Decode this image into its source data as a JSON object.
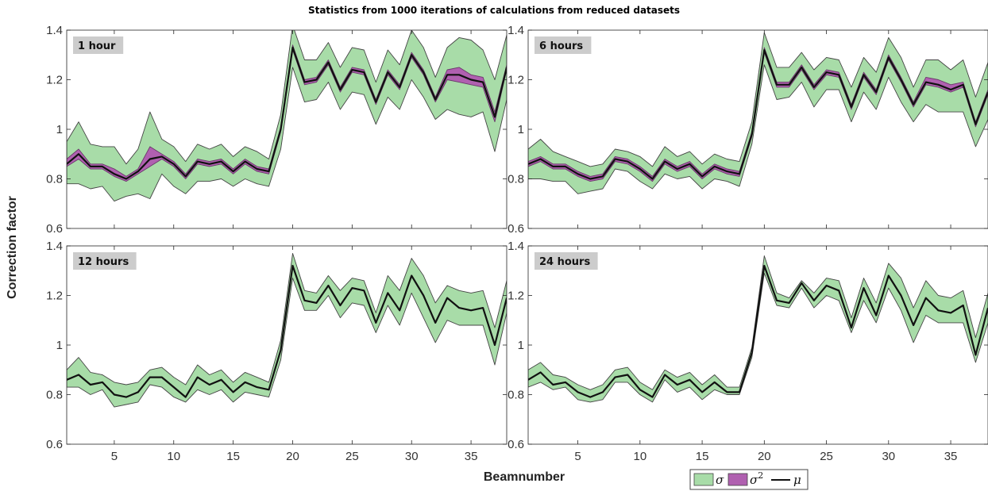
{
  "chart_data": {
    "type": "area",
    "title": "Statistics from 1000 iterations of calculations from reduced datasets",
    "xlabel": "Beamnumber",
    "ylabel": "Correction factor",
    "xlim": [
      1,
      38
    ],
    "ylim": [
      0.6,
      1.4
    ],
    "xticks": [
      "5",
      "10",
      "15",
      "20",
      "25",
      "30",
      "35"
    ],
    "yticks": [
      "0.6",
      "0.8",
      "1",
      "1.2",
      "1.4"
    ],
    "legend": {
      "placement": "bottom-right",
      "entries": [
        "σ",
        "σ²",
        "μ"
      ],
      "sigma2_superscript": "2"
    },
    "colors": {
      "sigma_fill": "#a8dca8",
      "sigma_edge": "#444444",
      "sigma2_fill": "#b060b0",
      "mu_line": "#111111",
      "label_bg": "#cccccc"
    },
    "panels": [
      {
        "label": "1 hour",
        "x": [
          1,
          2,
          3,
          4,
          5,
          6,
          7,
          8,
          9,
          10,
          11,
          12,
          13,
          14,
          15,
          16,
          17,
          18,
          19,
          20,
          21,
          22,
          23,
          24,
          25,
          26,
          27,
          28,
          29,
          30,
          31,
          32,
          33,
          34,
          35,
          36,
          37,
          38
        ],
        "mu": [
          0.86,
          0.9,
          0.85,
          0.85,
          0.82,
          0.8,
          0.83,
          0.88,
          0.89,
          0.86,
          0.81,
          0.87,
          0.86,
          0.87,
          0.83,
          0.87,
          0.84,
          0.83,
          1.0,
          1.33,
          1.19,
          1.2,
          1.27,
          1.16,
          1.24,
          1.23,
          1.11,
          1.23,
          1.17,
          1.3,
          1.23,
          1.12,
          1.22,
          1.22,
          1.2,
          1.19,
          1.05,
          1.25
        ],
        "sigma_upper": [
          0.95,
          1.03,
          0.94,
          0.93,
          0.93,
          0.86,
          0.92,
          1.07,
          0.96,
          0.93,
          0.87,
          0.94,
          0.92,
          0.94,
          0.89,
          0.93,
          0.91,
          0.88,
          1.06,
          1.42,
          1.28,
          1.28,
          1.35,
          1.25,
          1.33,
          1.32,
          1.19,
          1.32,
          1.26,
          1.4,
          1.33,
          1.21,
          1.33,
          1.37,
          1.36,
          1.32,
          1.2,
          1.38
        ],
        "sigma_lower": [
          0.78,
          0.78,
          0.76,
          0.77,
          0.71,
          0.73,
          0.74,
          0.72,
          0.82,
          0.77,
          0.74,
          0.79,
          0.79,
          0.8,
          0.77,
          0.8,
          0.78,
          0.77,
          0.92,
          1.25,
          1.11,
          1.12,
          1.19,
          1.08,
          1.15,
          1.14,
          1.02,
          1.13,
          1.08,
          1.2,
          1.13,
          1.04,
          1.08,
          1.06,
          1.05,
          1.07,
          0.91,
          1.12
        ],
        "sigma2_upper": [
          0.88,
          0.92,
          0.86,
          0.86,
          0.84,
          0.81,
          0.84,
          0.93,
          0.9,
          0.87,
          0.82,
          0.88,
          0.87,
          0.88,
          0.84,
          0.88,
          0.85,
          0.84,
          1.01,
          1.34,
          1.2,
          1.21,
          1.28,
          1.17,
          1.25,
          1.24,
          1.12,
          1.24,
          1.18,
          1.31,
          1.24,
          1.13,
          1.24,
          1.25,
          1.22,
          1.21,
          1.07,
          1.26
        ],
        "sigma2_lower": [
          0.85,
          0.88,
          0.84,
          0.84,
          0.81,
          0.79,
          0.82,
          0.85,
          0.88,
          0.85,
          0.8,
          0.86,
          0.85,
          0.86,
          0.82,
          0.86,
          0.83,
          0.82,
          0.99,
          1.32,
          1.18,
          1.19,
          1.26,
          1.15,
          1.23,
          1.22,
          1.1,
          1.22,
          1.16,
          1.29,
          1.22,
          1.11,
          1.2,
          1.19,
          1.18,
          1.17,
          1.03,
          1.24
        ]
      },
      {
        "label": "6 hours",
        "x": [
          1,
          2,
          3,
          4,
          5,
          6,
          7,
          8,
          9,
          10,
          11,
          12,
          13,
          14,
          15,
          16,
          17,
          18,
          19,
          20,
          21,
          22,
          23,
          24,
          25,
          26,
          27,
          28,
          29,
          30,
          31,
          32,
          33,
          34,
          35,
          36,
          37,
          38
        ],
        "mu": [
          0.86,
          0.88,
          0.85,
          0.85,
          0.82,
          0.8,
          0.81,
          0.88,
          0.87,
          0.84,
          0.8,
          0.87,
          0.84,
          0.86,
          0.81,
          0.85,
          0.83,
          0.82,
          0.98,
          1.32,
          1.18,
          1.18,
          1.25,
          1.17,
          1.23,
          1.22,
          1.09,
          1.22,
          1.15,
          1.29,
          1.2,
          1.1,
          1.19,
          1.18,
          1.16,
          1.18,
          1.02,
          1.15
        ],
        "sigma_upper": [
          0.92,
          0.96,
          0.91,
          0.89,
          0.87,
          0.85,
          0.86,
          0.92,
          0.91,
          0.89,
          0.85,
          0.93,
          0.89,
          0.91,
          0.86,
          0.9,
          0.88,
          0.87,
          1.03,
          1.39,
          1.25,
          1.25,
          1.31,
          1.24,
          1.29,
          1.28,
          1.17,
          1.29,
          1.23,
          1.37,
          1.29,
          1.17,
          1.28,
          1.28,
          1.24,
          1.28,
          1.13,
          1.27
        ],
        "sigma_lower": [
          0.8,
          0.8,
          0.79,
          0.79,
          0.74,
          0.75,
          0.76,
          0.84,
          0.83,
          0.79,
          0.76,
          0.82,
          0.8,
          0.81,
          0.76,
          0.8,
          0.79,
          0.77,
          0.94,
          1.26,
          1.12,
          1.13,
          1.19,
          1.09,
          1.16,
          1.16,
          1.03,
          1.15,
          1.08,
          1.21,
          1.11,
          1.03,
          1.1,
          1.07,
          1.07,
          1.07,
          0.93,
          1.04
        ],
        "sigma2_upper": [
          0.87,
          0.89,
          0.86,
          0.86,
          0.83,
          0.81,
          0.82,
          0.89,
          0.88,
          0.85,
          0.81,
          0.88,
          0.85,
          0.87,
          0.82,
          0.86,
          0.84,
          0.83,
          0.99,
          1.33,
          1.19,
          1.19,
          1.26,
          1.18,
          1.24,
          1.23,
          1.1,
          1.23,
          1.16,
          1.3,
          1.21,
          1.11,
          1.21,
          1.2,
          1.18,
          1.19,
          1.03,
          1.16
        ],
        "sigma2_lower": [
          0.85,
          0.87,
          0.84,
          0.84,
          0.81,
          0.79,
          0.8,
          0.87,
          0.86,
          0.83,
          0.79,
          0.86,
          0.83,
          0.85,
          0.8,
          0.84,
          0.82,
          0.81,
          0.97,
          1.31,
          1.17,
          1.17,
          1.24,
          1.16,
          1.22,
          1.21,
          1.08,
          1.21,
          1.14,
          1.28,
          1.19,
          1.09,
          1.18,
          1.17,
          1.15,
          1.17,
          1.01,
          1.14
        ]
      },
      {
        "label": "12 hours",
        "x": [
          1,
          2,
          3,
          4,
          5,
          6,
          7,
          8,
          9,
          10,
          11,
          12,
          13,
          14,
          15,
          16,
          17,
          18,
          19,
          20,
          21,
          22,
          23,
          24,
          25,
          26,
          27,
          28,
          29,
          30,
          31,
          32,
          33,
          34,
          35,
          36,
          37,
          38
        ],
        "mu": [
          0.86,
          0.88,
          0.84,
          0.85,
          0.8,
          0.79,
          0.81,
          0.87,
          0.87,
          0.83,
          0.79,
          0.87,
          0.84,
          0.86,
          0.81,
          0.85,
          0.83,
          0.82,
          0.98,
          1.32,
          1.18,
          1.17,
          1.24,
          1.16,
          1.23,
          1.22,
          1.09,
          1.21,
          1.14,
          1.28,
          1.2,
          1.09,
          1.19,
          1.15,
          1.14,
          1.15,
          1.0,
          1.19
        ],
        "sigma_upper": [
          0.9,
          0.95,
          0.89,
          0.88,
          0.85,
          0.84,
          0.85,
          0.9,
          0.91,
          0.87,
          0.84,
          0.92,
          0.88,
          0.9,
          0.85,
          0.89,
          0.87,
          0.85,
          1.02,
          1.37,
          1.22,
          1.21,
          1.28,
          1.22,
          1.27,
          1.26,
          1.13,
          1.28,
          1.22,
          1.35,
          1.28,
          1.17,
          1.24,
          1.22,
          1.21,
          1.22,
          1.07,
          1.26
        ],
        "sigma_lower": [
          0.83,
          0.83,
          0.8,
          0.82,
          0.75,
          0.76,
          0.77,
          0.84,
          0.83,
          0.79,
          0.77,
          0.82,
          0.8,
          0.82,
          0.77,
          0.81,
          0.8,
          0.79,
          0.94,
          1.27,
          1.14,
          1.14,
          1.2,
          1.11,
          1.17,
          1.16,
          1.05,
          1.16,
          1.08,
          1.21,
          1.11,
          1.01,
          1.1,
          1.08,
          1.08,
          1.08,
          0.92,
          1.13
        ],
        "sigma2_upper": [
          0.86,
          0.88,
          0.84,
          0.85,
          0.8,
          0.79,
          0.81,
          0.87,
          0.87,
          0.83,
          0.79,
          0.87,
          0.84,
          0.86,
          0.81,
          0.85,
          0.83,
          0.82,
          0.98,
          1.32,
          1.18,
          1.17,
          1.24,
          1.16,
          1.23,
          1.22,
          1.09,
          1.21,
          1.14,
          1.28,
          1.2,
          1.09,
          1.19,
          1.15,
          1.14,
          1.15,
          1.0,
          1.19
        ],
        "sigma2_lower": [
          0.86,
          0.88,
          0.84,
          0.85,
          0.8,
          0.79,
          0.81,
          0.87,
          0.87,
          0.83,
          0.79,
          0.87,
          0.84,
          0.86,
          0.81,
          0.85,
          0.83,
          0.82,
          0.98,
          1.32,
          1.18,
          1.17,
          1.24,
          1.16,
          1.23,
          1.22,
          1.09,
          1.21,
          1.14,
          1.28,
          1.2,
          1.09,
          1.19,
          1.15,
          1.14,
          1.15,
          1.0,
          1.19
        ]
      },
      {
        "label": "24 hours",
        "x": [
          1,
          2,
          3,
          4,
          5,
          6,
          7,
          8,
          9,
          10,
          11,
          12,
          13,
          14,
          15,
          16,
          17,
          18,
          19,
          20,
          21,
          22,
          23,
          24,
          25,
          26,
          27,
          28,
          29,
          30,
          31,
          32,
          33,
          34,
          35,
          36,
          37,
          38
        ],
        "mu": [
          0.86,
          0.89,
          0.84,
          0.85,
          0.81,
          0.79,
          0.81,
          0.87,
          0.88,
          0.82,
          0.79,
          0.88,
          0.84,
          0.86,
          0.81,
          0.85,
          0.81,
          0.81,
          0.97,
          1.32,
          1.18,
          1.17,
          1.25,
          1.18,
          1.24,
          1.22,
          1.07,
          1.23,
          1.12,
          1.28,
          1.2,
          1.08,
          1.19,
          1.14,
          1.13,
          1.16,
          0.96,
          1.15
        ],
        "sigma_upper": [
          0.9,
          0.93,
          0.88,
          0.87,
          0.84,
          0.82,
          0.84,
          0.9,
          0.91,
          0.85,
          0.82,
          0.9,
          0.87,
          0.89,
          0.84,
          0.88,
          0.83,
          0.83,
          0.99,
          1.36,
          1.21,
          1.19,
          1.26,
          1.21,
          1.27,
          1.26,
          1.11,
          1.27,
          1.17,
          1.33,
          1.27,
          1.15,
          1.26,
          1.2,
          1.19,
          1.22,
          1.03,
          1.21
        ],
        "sigma_lower": [
          0.83,
          0.85,
          0.82,
          0.83,
          0.78,
          0.77,
          0.78,
          0.85,
          0.85,
          0.8,
          0.77,
          0.86,
          0.81,
          0.83,
          0.78,
          0.82,
          0.8,
          0.8,
          0.95,
          1.29,
          1.16,
          1.15,
          1.23,
          1.15,
          1.2,
          1.18,
          1.05,
          1.18,
          1.09,
          1.23,
          1.14,
          1.01,
          1.12,
          1.09,
          1.09,
          1.09,
          0.93,
          1.09
        ],
        "sigma2_upper": [
          0.86,
          0.89,
          0.84,
          0.85,
          0.81,
          0.79,
          0.81,
          0.87,
          0.88,
          0.82,
          0.79,
          0.88,
          0.84,
          0.86,
          0.81,
          0.85,
          0.81,
          0.81,
          0.97,
          1.32,
          1.18,
          1.17,
          1.25,
          1.18,
          1.24,
          1.22,
          1.07,
          1.23,
          1.12,
          1.28,
          1.2,
          1.08,
          1.19,
          1.14,
          1.13,
          1.16,
          0.96,
          1.15
        ],
        "sigma2_lower": [
          0.86,
          0.89,
          0.84,
          0.85,
          0.81,
          0.79,
          0.81,
          0.87,
          0.88,
          0.82,
          0.79,
          0.88,
          0.84,
          0.86,
          0.81,
          0.85,
          0.81,
          0.81,
          0.97,
          1.32,
          1.18,
          1.17,
          1.25,
          1.18,
          1.24,
          1.22,
          1.07,
          1.23,
          1.12,
          1.28,
          1.2,
          1.08,
          1.19,
          1.14,
          1.13,
          1.16,
          0.96,
          1.15
        ]
      }
    ]
  }
}
